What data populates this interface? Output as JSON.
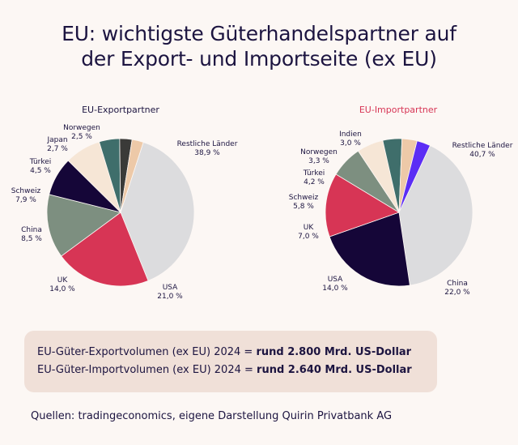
{
  "title_line1": "EU: wichtigste Güterhandelspartner auf",
  "title_line2": "der Export- und Importseite (ex EU)",
  "chart_data": [
    {
      "type": "pie",
      "title": "EU-Exportpartner",
      "title_color": "#1c1440",
      "slices": [
        {
          "label": "Restliche Länder",
          "value_text": "38,9 %",
          "value": 38.9,
          "color": "#dcdcde"
        },
        {
          "label": "USA",
          "value_text": "21,0 %",
          "value": 21.0,
          "color": "#d73555"
        },
        {
          "label": "UK",
          "value_text": "14,0 %",
          "value": 14.0,
          "color": "#7d8f80"
        },
        {
          "label": "China",
          "value_text": "8,5 %",
          "value": 8.5,
          "color": "#150638"
        },
        {
          "label": "Schweiz",
          "value_text": "7,9 %",
          "value": 7.9,
          "color": "#f6e6d6"
        },
        {
          "label": "Türkei",
          "value_text": "4,5 %",
          "value": 4.5,
          "color": "#3f6e6b"
        },
        {
          "label": "Japan",
          "value_text": "2,7 %",
          "value": 2.7,
          "color": "#3a3a38"
        },
        {
          "label": "Norwegen",
          "value_text": "2,5 %",
          "value": 2.5,
          "color": "#edc9a8"
        }
      ]
    },
    {
      "type": "pie",
      "title": "EU-Importpartner",
      "title_color": "#d73555",
      "slices": [
        {
          "label": "Restliche Länder",
          "value_text": "40,7 %",
          "value": 40.7,
          "color": "#dcdcde"
        },
        {
          "label": "China",
          "value_text": "22,0 %",
          "value": 22.0,
          "color": "#150638"
        },
        {
          "label": "USA",
          "value_text": "14,0 %",
          "value": 14.0,
          "color": "#d73555"
        },
        {
          "label": "UK",
          "value_text": "7,0 %",
          "value": 7.0,
          "color": "#7d8f80"
        },
        {
          "label": "Schweiz",
          "value_text": "5,8 %",
          "value": 5.8,
          "color": "#f6e6d6"
        },
        {
          "label": "Türkei",
          "value_text": "4,2 %",
          "value": 4.2,
          "color": "#3f6e6b"
        },
        {
          "label": "Norwegen",
          "value_text": "3,3 %",
          "value": 3.3,
          "color": "#edc9a8"
        },
        {
          "label": "Indien",
          "value_text": "3,0 %",
          "value": 3.0,
          "color": "#5b2df5"
        }
      ]
    }
  ],
  "volumes": {
    "export_prefix": "EU-Güter-Exportvolumen (ex EU) 2024 = ",
    "export_value": "rund 2.800 Mrd. US-Dollar",
    "import_prefix": "EU-Güter-Importvolumen (ex EU) 2024 = ",
    "import_value": "rund 2.640 Mrd. US-Dollar"
  },
  "source": "Quellen: tradingeconomics, eigene Darstellung Quirin Privatbank AG"
}
